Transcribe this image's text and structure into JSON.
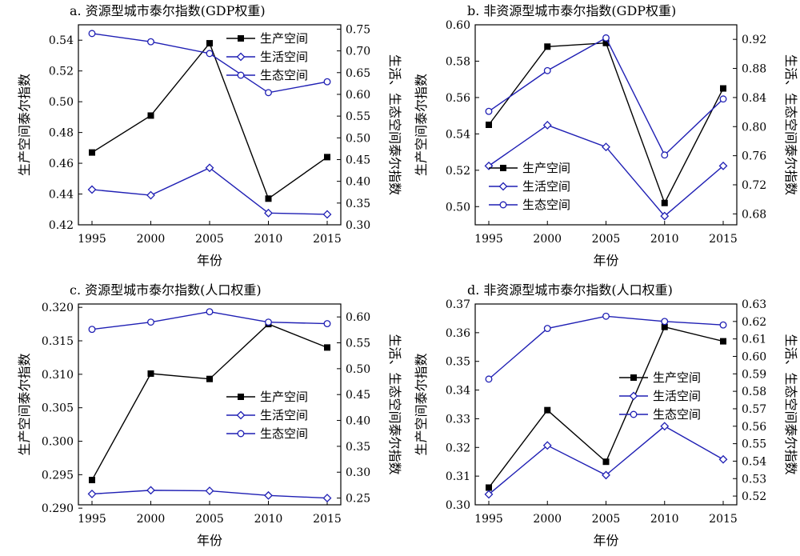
{
  "chart_data": [
    {
      "type": "line",
      "title": "a. 资源型城市泰尔指数(GDP权重)",
      "xlabel": "年份",
      "ylabel": "生产空间泰尔指数",
      "y2label": "生活、生态空间泰尔指数",
      "categories": [
        "1995",
        "2000",
        "2005",
        "2010",
        "2015"
      ],
      "ylim": [
        0.42,
        0.55
      ],
      "yticks": [
        "0.42",
        "0.44",
        "0.46",
        "0.48",
        "0.50",
        "0.52",
        "0.54"
      ],
      "y2lim": [
        0.3,
        0.76
      ],
      "y2ticks": [
        "0.30",
        "0.35",
        "0.40",
        "0.45",
        "0.50",
        "0.55",
        "0.60",
        "0.65",
        "0.70",
        "0.75"
      ],
      "legend_position": "top-right",
      "series": [
        {
          "name": "生产空间",
          "axis": "left",
          "marker": "square",
          "color": "#000000",
          "values": [
            0.467,
            0.491,
            0.538,
            0.437,
            0.464
          ]
        },
        {
          "name": "生活空间",
          "axis": "right",
          "marker": "diamond",
          "color": "#1f1fb4",
          "values": [
            0.381,
            0.368,
            0.431,
            0.327,
            0.324
          ]
        },
        {
          "name": "生态空间",
          "axis": "right",
          "marker": "circle",
          "color": "#1f1fb4",
          "values": [
            0.74,
            0.721,
            0.694,
            0.604,
            0.629
          ]
        }
      ]
    },
    {
      "type": "line",
      "title": "b. 非资源型城市泰尔指数(GDP权重)",
      "xlabel": "年份",
      "ylabel": "生产空间泰尔指数",
      "y2label": "生活、生态空间泰尔指数",
      "categories": [
        "1995",
        "2000",
        "2005",
        "2010",
        "2015"
      ],
      "ylim": [
        0.49,
        0.6
      ],
      "yticks": [
        "0.50",
        "0.52",
        "0.54",
        "0.56",
        "0.58",
        "0.60"
      ],
      "y2lim": [
        0.665,
        0.94
      ],
      "y2ticks": [
        "0.68",
        "0.72",
        "0.76",
        "0.80",
        "0.84",
        "0.88",
        "0.92"
      ],
      "legend_position": "bottom-left",
      "series": [
        {
          "name": "生产空间",
          "axis": "left",
          "marker": "square",
          "color": "#000000",
          "values": [
            0.545,
            0.588,
            0.59,
            0.502,
            0.565
          ]
        },
        {
          "name": "生活空间",
          "axis": "right",
          "marker": "diamond",
          "color": "#1f1fb4",
          "values": [
            0.746,
            0.802,
            0.772,
            0.677,
            0.746
          ]
        },
        {
          "name": "生态空间",
          "axis": "right",
          "marker": "circle",
          "color": "#1f1fb4",
          "values": [
            0.821,
            0.877,
            0.922,
            0.761,
            0.838
          ]
        }
      ]
    },
    {
      "type": "line",
      "title": "c. 资源型城市泰尔指数(人口权重)",
      "xlabel": "年份",
      "ylabel": "生产空间泰尔指数",
      "y2label": "生活、生态空间泰尔指数",
      "categories": [
        "1995",
        "2000",
        "2005",
        "2010",
        "2015"
      ],
      "ylim": [
        0.2905,
        0.3205
      ],
      "yticks": [
        "0.290",
        "0.295",
        "0.300",
        "0.305",
        "0.310",
        "0.315",
        "0.320"
      ],
      "y2lim": [
        0.237,
        0.625
      ],
      "y2ticks": [
        "0.25",
        "0.30",
        "0.35",
        "0.40",
        "0.45",
        "0.50",
        "0.55",
        "0.60"
      ],
      "legend_position": "center-right",
      "series": [
        {
          "name": "生产空间",
          "axis": "left",
          "marker": "square",
          "color": "#000000",
          "values": [
            0.2942,
            0.3101,
            0.3093,
            0.3175,
            0.314
          ]
        },
        {
          "name": "生活空间",
          "axis": "right",
          "marker": "diamond",
          "color": "#1f1fb4",
          "values": [
            0.258,
            0.265,
            0.264,
            0.255,
            0.25
          ]
        },
        {
          "name": "生态空间",
          "axis": "right",
          "marker": "circle",
          "color": "#1f1fb4",
          "values": [
            0.576,
            0.59,
            0.61,
            0.59,
            0.587
          ]
        }
      ]
    },
    {
      "type": "line",
      "title": "d. 非资源型城市泰尔指数(人口权重)",
      "xlabel": "年份",
      "ylabel": "生产空间泰尔指数",
      "y2label": "生活、生态空间泰尔指数",
      "categories": [
        "1995",
        "2000",
        "2005",
        "2010",
        "2015"
      ],
      "ylim": [
        0.3,
        0.37
      ],
      "yticks": [
        "0.30",
        "0.31",
        "0.32",
        "0.33",
        "0.34",
        "0.35",
        "0.36",
        "0.37"
      ],
      "y2lim": [
        0.515,
        0.63
      ],
      "y2ticks": [
        "0.52",
        "0.53",
        "0.54",
        "0.55",
        "0.56",
        "0.57",
        "0.58",
        "0.59",
        "0.60",
        "0.61",
        "0.62",
        "0.63"
      ],
      "legend_position": "center-right",
      "series": [
        {
          "name": "生产空间",
          "axis": "left",
          "marker": "square",
          "color": "#000000",
          "values": [
            0.306,
            0.333,
            0.315,
            0.362,
            0.357
          ]
        },
        {
          "name": "生活空间",
          "axis": "right",
          "marker": "diamond",
          "color": "#1f1fb4",
          "values": [
            0.521,
            0.549,
            0.532,
            0.56,
            0.541
          ]
        },
        {
          "name": "生态空间",
          "axis": "right",
          "marker": "circle",
          "color": "#1f1fb4",
          "values": [
            0.587,
            0.616,
            0.623,
            0.62,
            0.618
          ]
        }
      ]
    }
  ]
}
